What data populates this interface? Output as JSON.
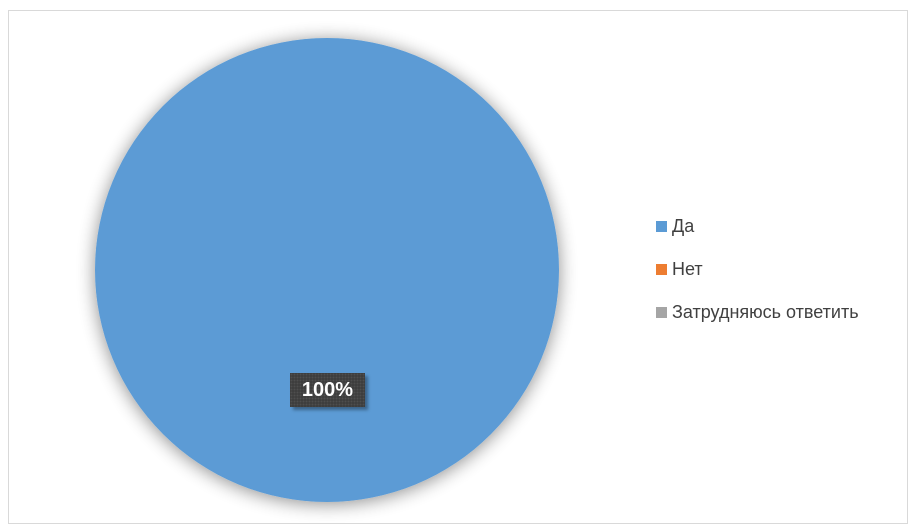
{
  "chart_data": {
    "type": "pie",
    "title": "",
    "categories": [
      "Да",
      "Нет",
      "Затрудняюсь ответить"
    ],
    "values": [
      100,
      0,
      0
    ],
    "unit": "%",
    "colors": [
      "#5B9BD5",
      "#ED7D31",
      "#A5A5A5"
    ],
    "data_labels": [
      "100%"
    ],
    "legend_position": "right"
  }
}
